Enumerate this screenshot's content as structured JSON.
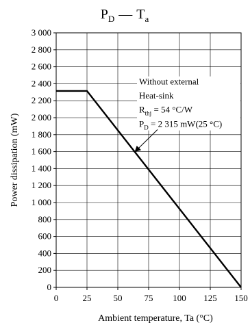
{
  "chart_data": {
    "type": "line",
    "title": {
      "left": {
        "base": "P",
        "sub": "D"
      },
      "separator": "—",
      "right": {
        "base": "T",
        "sub": "a"
      }
    },
    "xlabel": "Ambient temperature, Ta (°C)",
    "ylabel": "Power dissipation   (mW)",
    "xlim": [
      0,
      150
    ],
    "ylim": [
      0,
      3000
    ],
    "x_ticks": [
      0,
      25,
      50,
      75,
      100,
      125,
      150
    ],
    "x_tick_labels": [
      "0",
      "25",
      "50",
      "75",
      "100",
      "125",
      "150"
    ],
    "y_ticks": [
      0,
      200,
      400,
      600,
      800,
      1000,
      1200,
      1400,
      1600,
      1800,
      2000,
      2200,
      2400,
      2600,
      2800,
      3000
    ],
    "y_tick_labels": [
      "0",
      "200",
      "400",
      "600",
      "800",
      "1 000",
      "1 200",
      "1 400",
      "1 600",
      "1 800",
      "2 000",
      "2 200",
      "2 400",
      "2 600",
      "2 800",
      "3 000"
    ],
    "grid": true,
    "series": [
      {
        "x": [
          0,
          25,
          150
        ],
        "y": [
          2315,
          2315,
          0
        ]
      }
    ],
    "annotation": {
      "line1": "Without external",
      "line2": "Heat-sink",
      "line3": {
        "base": "R",
        "sub": "thj",
        "rest": " = 54 °C/W"
      },
      "line4": {
        "base": "P",
        "sub": "D",
        "rest": " = 2 315 mW(25 °C)"
      },
      "arrow_target": {
        "x": 64,
        "y": 1600
      }
    }
  }
}
